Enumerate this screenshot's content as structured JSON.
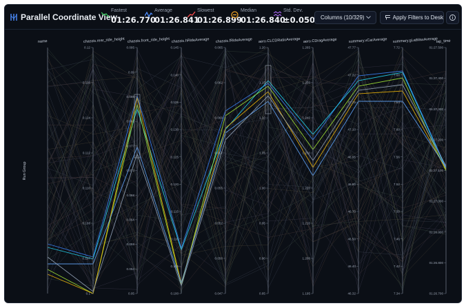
{
  "header": {
    "title": "Parallel Coordinate View",
    "stats": [
      {
        "label": "Fastest",
        "value": "01:26.770",
        "color": "#34c759",
        "icon": "trend-down-icon"
      },
      {
        "label": "Average",
        "value": "01:26.841",
        "color": "#4c8dff",
        "icon": "trend-wave-icon"
      },
      {
        "label": "Slowest",
        "value": "01:26.899",
        "color": "#ff4d4d",
        "icon": "trend-up-icon"
      },
      {
        "label": "Median",
        "value": "01:26.840",
        "color": "#f5a623",
        "icon": "median-icon"
      },
      {
        "label": "Std. Dev.",
        "value": "±0.050s",
        "color": "#b36bff",
        "icon": "std-dev-icon"
      }
    ],
    "columns_button": "Columns (10/329)",
    "apply_button": "Apply Filters to Desk"
  },
  "chart_data": {
    "type": "parallel-coordinates",
    "left_label": "Run Group",
    "axes": [
      {
        "name": "name",
        "ticks": []
      },
      {
        "name": "chassis.rear_ride_height",
        "ticks": [
          "0.12",
          "0.116",
          "0.114",
          "0.112",
          "0.110",
          "0.108",
          "0.107",
          "0.1"
        ]
      },
      {
        "name": "chassis.front_ride_height",
        "ticks": [
          "0.095",
          "0.09",
          "0.086",
          "0.082",
          "0.077",
          "0.073",
          "0.068",
          "0.064",
          "0.059",
          "0.054",
          "0.05"
        ]
      },
      {
        "name": "chassis.hRideAverage",
        "ticks": [
          "0.145",
          "0.140",
          "0.135",
          "0.130",
          "0.125",
          "0.120",
          "0.115",
          "0.110",
          "0.105",
          "0.100"
        ]
      },
      {
        "name": "chassis.fRideAverage",
        "ticks": [
          "0.065",
          "0.062",
          "0.060",
          "0.057",
          "0.055",
          "0.052",
          "0.050",
          "0.047"
        ]
      },
      {
        "name": "aero.CLCDRatioAverage",
        "ticks": [
          "1.20",
          "1.15",
          "1.10",
          "1.05",
          "1.00",
          "0.95",
          "0.90",
          "0.85"
        ]
      },
      {
        "name": "aero.CDragAverage",
        "ticks": [
          "1.265",
          "1.250",
          "1.240",
          "1.230",
          "1.220",
          "1.210",
          "1.200",
          "1.195"
        ]
      },
      {
        "name": "summary.vCarAverage",
        "ticks": [
          "47.77",
          "47.32",
          "47.25",
          "47.10",
          "46.95",
          "46.80",
          "46.70",
          "46.50",
          "46.40",
          "46.32"
        ]
      },
      {
        "name": "summary.gLatMaxAverage",
        "ticks": [
          "7.72",
          "7.68",
          "7.64",
          "7.60",
          "7.56",
          "7.52",
          "7.50",
          "7.46",
          "7.42",
          "7.34"
        ]
      },
      {
        "name": "lap_time",
        "ticks": [
          "01:27.500",
          "01:27.400",
          "01:27.300",
          "01:27.200",
          "01:27.100",
          "01:27.000",
          "01:26.900",
          "01:26.800",
          "01:26.700"
        ]
      }
    ],
    "highlight_colors": [
      "#3b82f6",
      "#22d3ee",
      "#a3e635",
      "#eab308",
      "#60a5fa",
      "#94a3b8"
    ],
    "background_line_color": "#3a4150"
  }
}
